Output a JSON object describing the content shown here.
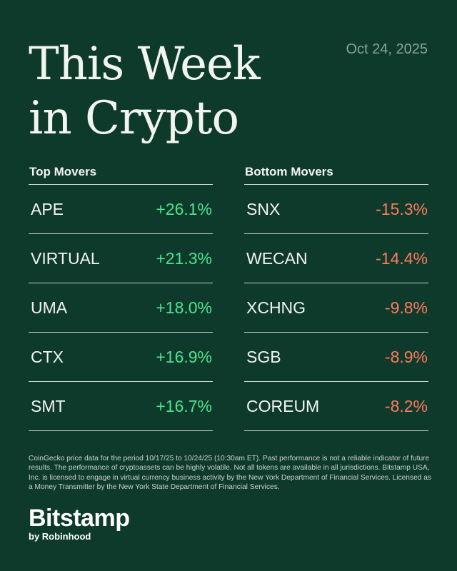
{
  "header": {
    "title_line1": "This Week",
    "title_line2": "in Crypto",
    "date": "Oct 24, 2025"
  },
  "top_movers": {
    "heading": "Top Movers",
    "items": [
      {
        "symbol": "APE",
        "change": "+26.1%"
      },
      {
        "symbol": "VIRTUAL",
        "change": "+21.3%"
      },
      {
        "symbol": "UMA",
        "change": "+18.0%"
      },
      {
        "symbol": "CTX",
        "change": "+16.9%"
      },
      {
        "symbol": "SMT",
        "change": "+16.7%"
      }
    ]
  },
  "bottom_movers": {
    "heading": "Bottom Movers",
    "items": [
      {
        "symbol": "SNX",
        "change": "-15.3%"
      },
      {
        "symbol": "WECAN",
        "change": "-14.4%"
      },
      {
        "symbol": "XCHNG",
        "change": "-9.8%"
      },
      {
        "symbol": "SGB",
        "change": "-8.9%"
      },
      {
        "symbol": "COREUM",
        "change": "-8.2%"
      }
    ]
  },
  "disclaimer": "CoinGecko price data for the period 10/17/25 to 10/24/25 (10:30am ET). Past performance is not a reliable indicator of future results. The performance of cryptoassets can be highly volatile. Not all tokens are available in all jurisdictions. Bitstamp USA, Inc. is licensed to engage in virtual currency business activity by the New York Department of Financial Services. Licensed as a Money Transmitter by the New York State Department of Financial Services.",
  "brand": {
    "name": "Bitstamp",
    "sub": "by Robinhood"
  },
  "colors": {
    "background": "#0e3a2c",
    "positive": "#4ee38f",
    "negative": "#ff7a5c"
  }
}
